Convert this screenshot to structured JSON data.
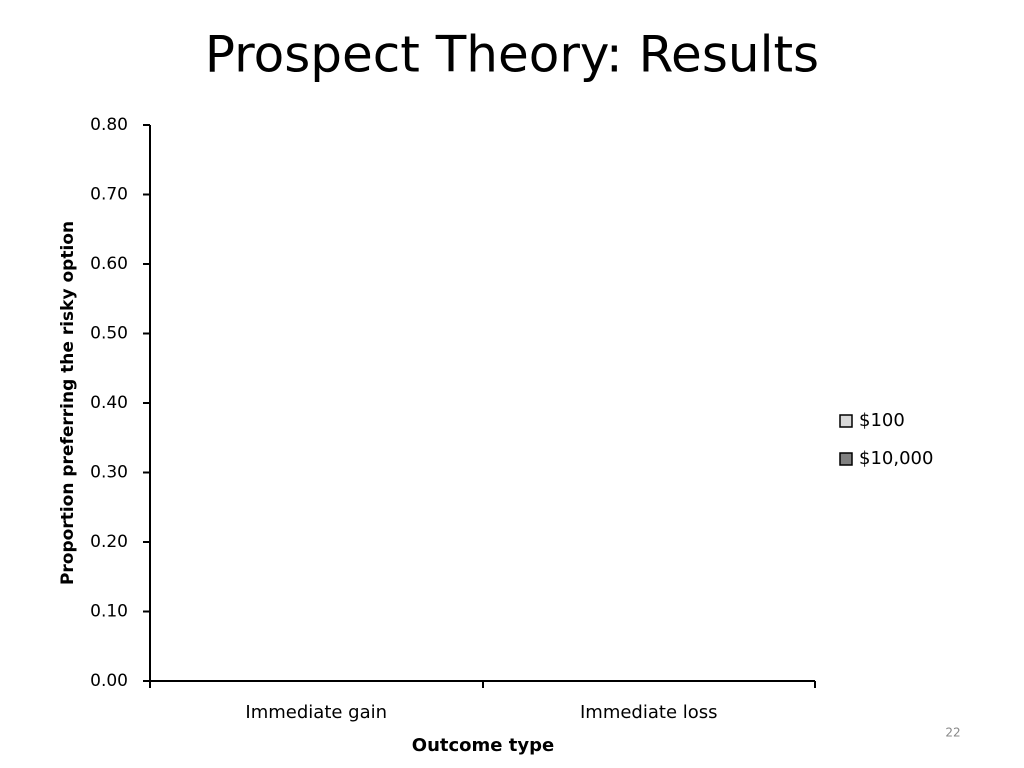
{
  "chart_data": {
    "type": "bar",
    "title": "Prospect Theory: Results",
    "categories": [
      "Immediate gain",
      "Immediate loss"
    ],
    "series": [
      {
        "name": "$100",
        "color": "#d9d9d9",
        "values": [
          null,
          null
        ]
      },
      {
        "name": "$10,000",
        "color": "#808080",
        "values": [
          null,
          null
        ]
      }
    ],
    "x_label": "Outcome type",
    "y_label": "Proportion preferring the risky option",
    "ylim": [
      0,
      0.8
    ],
    "yticks": [
      {
        "value": 0,
        "label": "0.00"
      },
      {
        "value": 0.1,
        "label": "0.10"
      },
      {
        "value": 0.2,
        "label": "0.20"
      },
      {
        "value": 0.3,
        "label": "0.30"
      },
      {
        "value": 0.4,
        "label": "0.40"
      },
      {
        "value": 0.5,
        "label": "0.50"
      },
      {
        "value": 0.6,
        "label": "0.60"
      },
      {
        "value": 0.7,
        "label": "0.70"
      },
      {
        "value": 0.8,
        "label": "0.80"
      }
    ],
    "grid": false,
    "legend": "right"
  },
  "slide_number": "22"
}
